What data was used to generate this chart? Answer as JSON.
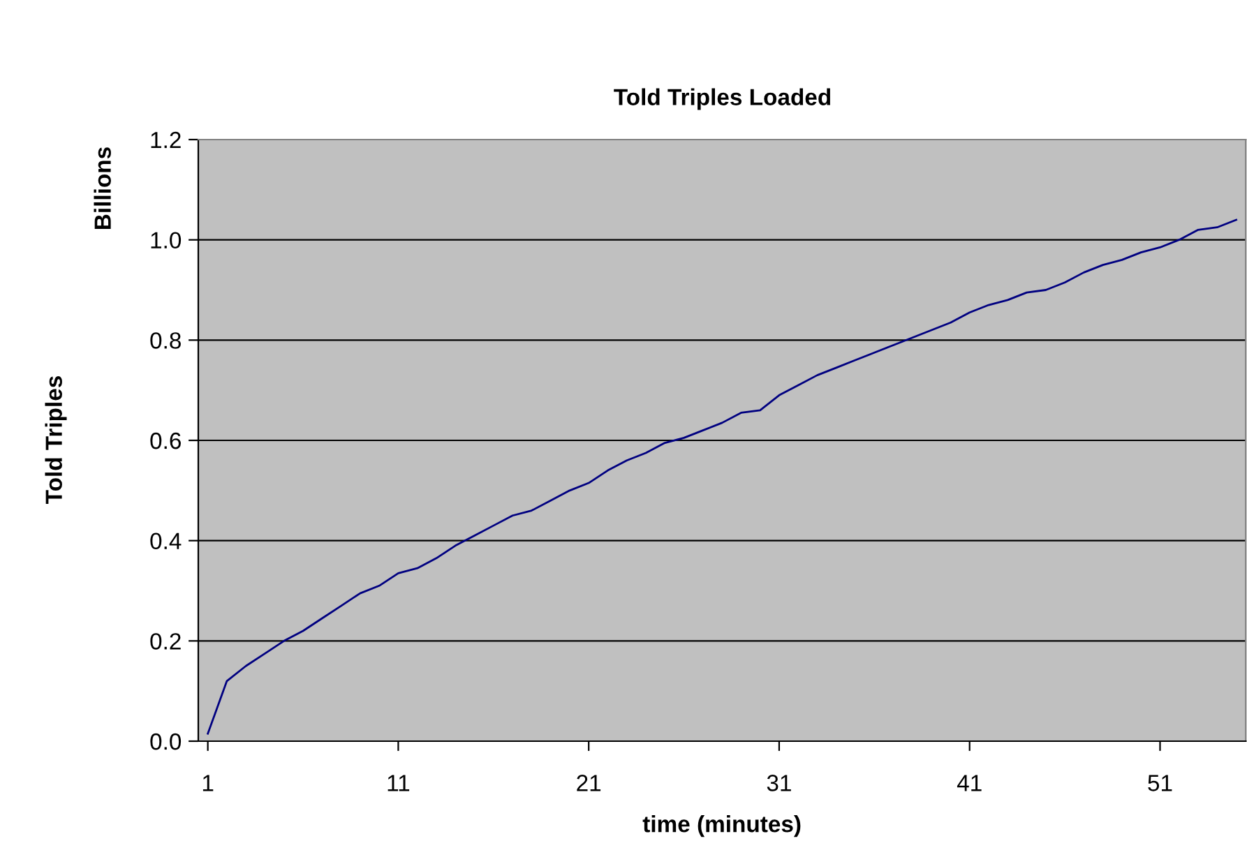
{
  "chart_data": {
    "type": "line",
    "title": "Told Triples Loaded",
    "xlabel": "time (minutes)",
    "ylabel": "Told Triples",
    "annotations": [
      "Billions"
    ],
    "x": [
      1,
      2,
      3,
      4,
      5,
      6,
      7,
      8,
      9,
      10,
      11,
      12,
      13,
      14,
      15,
      16,
      17,
      18,
      19,
      20,
      21,
      22,
      23,
      24,
      25,
      26,
      27,
      28,
      29,
      30,
      31,
      32,
      33,
      34,
      35,
      36,
      37,
      38,
      39,
      40,
      41,
      42,
      43,
      44,
      45,
      46,
      47,
      48,
      49,
      50,
      51,
      52,
      53,
      54,
      55
    ],
    "series": [
      {
        "color": "#000080",
        "values": [
          0.015,
          0.12,
          0.15,
          0.175,
          0.2,
          0.22,
          0.245,
          0.27,
          0.295,
          0.31,
          0.335,
          0.345,
          0.365,
          0.39,
          0.41,
          0.43,
          0.45,
          0.46,
          0.48,
          0.5,
          0.515,
          0.54,
          0.56,
          0.575,
          0.595,
          0.605,
          0.62,
          0.635,
          0.655,
          0.66,
          0.69,
          0.71,
          0.73,
          0.745,
          0.76,
          0.775,
          0.79,
          0.805,
          0.82,
          0.835,
          0.855,
          0.87,
          0.88,
          0.895,
          0.9,
          0.915,
          0.935,
          0.95,
          0.96,
          0.975,
          0.985,
          1.0,
          1.02,
          1.025,
          1.04
        ]
      }
    ],
    "xlim": [
      0.5,
      55.5
    ],
    "xticks": [
      1,
      11,
      21,
      31,
      41,
      51
    ],
    "ylim": [
      0,
      1.2
    ],
    "yticks": [
      {
        "value": 0,
        "label": "0.0"
      },
      0.2,
      0.4,
      0.6,
      0.8,
      {
        "value": 1.0,
        "label": "1.0"
      },
      1.2
    ],
    "grid": "y",
    "legend": false,
    "marker": "none",
    "line_style": "solid"
  }
}
